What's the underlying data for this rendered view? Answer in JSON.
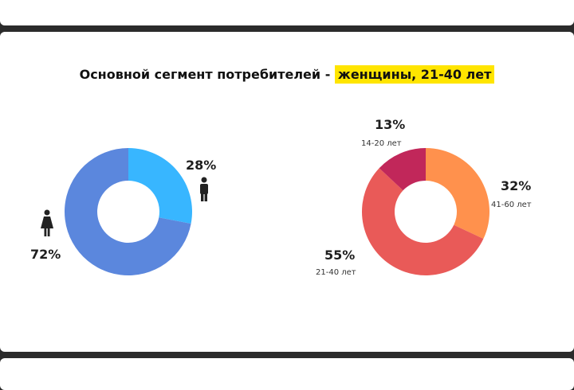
{
  "header": {
    "title_prefix": "Основной сегмент потребителей - ",
    "title_highlight": "женщины, 21-40 лет",
    "highlight_color": "#ffe500"
  },
  "chart_data": [
    {
      "type": "pie",
      "donut": true,
      "categories": [
        "Мужчины",
        "Женщины"
      ],
      "values": [
        28,
        72
      ],
      "colors": [
        "#38b6ff",
        "#5b87dd"
      ],
      "labels": [
        "28%",
        "72%"
      ],
      "icons": [
        "male-icon",
        "female-icon"
      ]
    },
    {
      "type": "pie",
      "donut": true,
      "categories": [
        "41-60 лет",
        "21-40 лет",
        "14-20 лет"
      ],
      "values": [
        32,
        55,
        13
      ],
      "colors": [
        "#ff914d",
        "#e95a58",
        "#c1275a"
      ],
      "labels": [
        "32%",
        "55%",
        "13%"
      ],
      "sublabels": [
        "41-60 лет",
        "21-40 лет",
        "14-20 лет"
      ]
    }
  ]
}
